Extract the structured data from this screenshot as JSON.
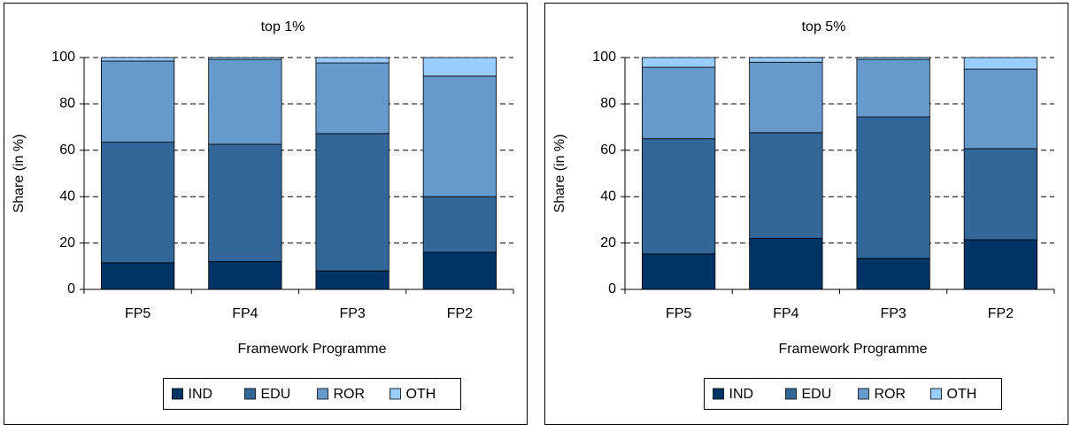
{
  "chart_data": [
    {
      "type": "bar",
      "stacked": true,
      "title": "top 1%",
      "y_label": "Share (in %)",
      "x_label": "Framework Programme",
      "categories": [
        "FP5",
        "FP4",
        "FP3",
        "FP2"
      ],
      "series": [
        {
          "name": "IND",
          "color": "#003366",
          "values": [
            11.5,
            12,
            8,
            16
          ]
        },
        {
          "name": "EDU",
          "color": "#336699",
          "values": [
            52,
            50.6,
            59.2,
            24
          ]
        },
        {
          "name": "ROR",
          "color": "#6699cc",
          "values": [
            35,
            36.6,
            30.5,
            52
          ]
        },
        {
          "name": "OTH",
          "color": "#99ccff",
          "values": [
            1.5,
            0.8,
            2.3,
            8
          ]
        }
      ],
      "ylim": [
        0,
        100
      ],
      "yticks": [
        0,
        20,
        40,
        60,
        80,
        100
      ],
      "grid": true,
      "legend": "bottom"
    },
    {
      "type": "bar",
      "stacked": true,
      "title": "top 5%",
      "y_label": "Share (in %)",
      "x_label": "Framework Programme",
      "categories": [
        "FP5",
        "FP4",
        "FP3",
        "FP2"
      ],
      "series": [
        {
          "name": "IND",
          "color": "#003366",
          "values": [
            15.3,
            22,
            13.4,
            21.4
          ]
        },
        {
          "name": "EDU",
          "color": "#336699",
          "values": [
            49.7,
            45.6,
            61,
            39.3
          ]
        },
        {
          "name": "ROR",
          "color": "#6699cc",
          "values": [
            30.8,
            30.4,
            24.8,
            34.3
          ]
        },
        {
          "name": "OTH",
          "color": "#99ccff",
          "values": [
            4.2,
            2,
            0.8,
            5
          ]
        }
      ],
      "ylim": [
        0,
        100
      ],
      "yticks": [
        0,
        20,
        40,
        60,
        80,
        100
      ],
      "grid": true,
      "legend": "bottom"
    }
  ]
}
